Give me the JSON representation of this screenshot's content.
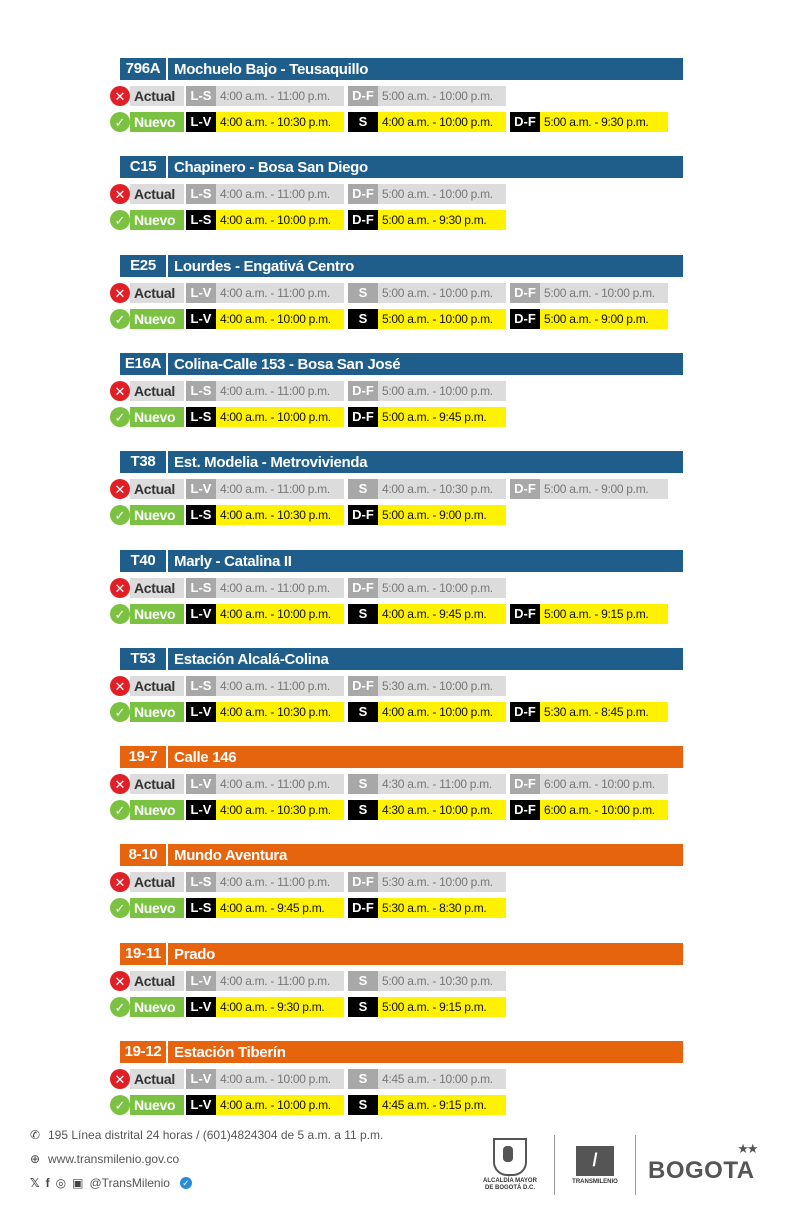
{
  "routes": [
    {
      "code": "796A",
      "name": "Mochuelo Bajo - Teusaquillo",
      "color": "blue",
      "actual": [
        {
          "day": "L-S",
          "time": "4:00 a.m. - 11:00 p.m."
        },
        {
          "day": "D-F",
          "time": "5:00 a.m. - 10:00 p.m."
        }
      ],
      "nuevo": [
        {
          "day": "L-V",
          "time": "4:00 a.m. - 10:30 p.m."
        },
        {
          "day": "S",
          "time": "4:00 a.m. - 10:00 p.m."
        },
        {
          "day": "D-F",
          "time": "5:00 a.m. - 9:30 p.m."
        }
      ]
    },
    {
      "code": "C15",
      "name": "Chapinero - Bosa San Diego",
      "color": "blue",
      "actual": [
        {
          "day": "L-S",
          "time": "4:00 a.m. - 11:00 p.m."
        },
        {
          "day": "D-F",
          "time": "5:00 a.m. - 10:00 p.m."
        }
      ],
      "nuevo": [
        {
          "day": "L-S",
          "time": "4:00 a.m. - 10:00 p.m."
        },
        {
          "day": "D-F",
          "time": "5:00 a.m. - 9:30 p.m."
        }
      ]
    },
    {
      "code": "E25",
      "name": "Lourdes - Engativá Centro",
      "color": "blue",
      "actual": [
        {
          "day": "L-V",
          "time": "4:00 a.m. - 11:00 p.m."
        },
        {
          "day": "S",
          "time": "5:00 a.m. - 10:00 p.m."
        },
        {
          "day": "D-F",
          "time": "5:00 a.m. - 10:00 p.m."
        }
      ],
      "nuevo": [
        {
          "day": "L-V",
          "time": "4:00 a.m. - 10:00 p.m."
        },
        {
          "day": "S",
          "time": "5:00 a.m. - 10:00 p.m."
        },
        {
          "day": "D-F",
          "time": "5:00 a.m. - 9:00 p.m."
        }
      ]
    },
    {
      "code": "E16A",
      "name": "Colina-Calle 153 - Bosa San José",
      "color": "blue",
      "actual": [
        {
          "day": "L-S",
          "time": "4:00 a.m. - 11:00 p.m."
        },
        {
          "day": "D-F",
          "time": "5:00 a.m. - 10:00 p.m."
        }
      ],
      "nuevo": [
        {
          "day": "L-S",
          "time": "4:00 a.m. - 10:00 p.m."
        },
        {
          "day": "D-F",
          "time": "5:00 a.m. - 9:45 p.m."
        }
      ]
    },
    {
      "code": "T38",
      "name": "Est. Modelia - Metrovivienda",
      "color": "blue",
      "actual": [
        {
          "day": "L-V",
          "time": "4:00 a.m. - 11:00 p.m."
        },
        {
          "day": "S",
          "time": "4:00 a.m. - 10:30 p.m."
        },
        {
          "day": "D-F",
          "time": "5:00 a.m. - 9:00 p.m."
        }
      ],
      "nuevo": [
        {
          "day": "L-S",
          "time": "4:00 a.m. - 10:30 p.m."
        },
        {
          "day": "D-F",
          "time": "5:00 a.m. - 9:00 p.m."
        }
      ]
    },
    {
      "code": "T40",
      "name": "Marly - Catalina II",
      "color": "blue",
      "actual": [
        {
          "day": "L-S",
          "time": "4:00 a.m. - 11:00 p.m."
        },
        {
          "day": "D-F",
          "time": "5:00 a.m. - 10:00 p.m."
        }
      ],
      "nuevo": [
        {
          "day": "L-V",
          "time": "4:00 a.m. - 10:00 p.m."
        },
        {
          "day": "S",
          "time": "4:00 a.m. - 9:45 p.m."
        },
        {
          "day": "D-F",
          "time": "5:00 a.m. - 9:15 p.m."
        }
      ]
    },
    {
      "code": "T53",
      "name": "Estación Alcalá-Colina",
      "color": "blue",
      "actual": [
        {
          "day": "L-S",
          "time": "4:00 a.m. - 11:00 p.m."
        },
        {
          "day": "D-F",
          "time": "5:30 a.m. - 10:00 p.m."
        }
      ],
      "nuevo": [
        {
          "day": "L-V",
          "time": "4:00 a.m. - 10:30 p.m."
        },
        {
          "day": "S",
          "time": "4:00 a.m. - 10:00 p.m."
        },
        {
          "day": "D-F",
          "time": "5:30 a.m. - 8:45 p.m."
        }
      ]
    },
    {
      "code": "19-7",
      "name": "Calle 146",
      "color": "orange",
      "actual": [
        {
          "day": "L-V",
          "time": "4:00 a.m. - 11:00 p.m."
        },
        {
          "day": "S",
          "time": "4:30 a.m. - 11:00 p.m."
        },
        {
          "day": "D-F",
          "time": "6:00 a.m. - 10:00 p.m."
        }
      ],
      "nuevo": [
        {
          "day": "L-V",
          "time": "4:00 a.m. - 10:30 p.m."
        },
        {
          "day": "S",
          "time": "4:30 a.m. - 10:00 p.m."
        },
        {
          "day": "D-F",
          "time": "6:00 a.m. - 10:00 p.m."
        }
      ]
    },
    {
      "code": "8-10",
      "name": "Mundo Aventura",
      "color": "orange",
      "actual": [
        {
          "day": "L-S",
          "time": "4:00 a.m. - 11:00 p.m."
        },
        {
          "day": "D-F",
          "time": "5:30 a.m. - 10:00 p.m."
        }
      ],
      "nuevo": [
        {
          "day": "L-S",
          "time": "4:00 a.m. - 9:45 p.m."
        },
        {
          "day": "D-F",
          "time": "5:30 a.m. - 8:30 p.m."
        }
      ]
    },
    {
      "code": "19-11",
      "name": "Prado",
      "color": "orange",
      "actual": [
        {
          "day": "L-V",
          "time": "4:00 a.m. - 11:00 p.m."
        },
        {
          "day": "S",
          "time": "5:00 a.m. - 10:30 p.m."
        }
      ],
      "nuevo": [
        {
          "day": "L-V",
          "time": "4:00 a.m. - 9:30 p.m."
        },
        {
          "day": "S",
          "time": "5:00 a.m. - 9:15 p.m."
        }
      ]
    },
    {
      "code": "19-12",
      "name": "Estación Tiberín",
      "color": "orange",
      "actual": [
        {
          "day": "L-V",
          "time": "4:00 a.m. - 10:00 p.m."
        },
        {
          "day": "S",
          "time": "4:45 a.m. - 10:00 p.m."
        }
      ],
      "nuevo": [
        {
          "day": "L-V",
          "time": "4:00 a.m. - 10:00 p.m."
        },
        {
          "day": "S",
          "time": "4:45 a.m. - 9:15 p.m."
        }
      ]
    }
  ],
  "labels": {
    "actual": "Actual",
    "nuevo": "Nuevo"
  },
  "footer": {
    "phone": "195 Línea distrital 24 horas / (601)4824304 de 5 a.m. a 11 p.m.",
    "website": "www.transmilenio.gov.co",
    "handle": "@TransMilenio",
    "alcaldia_line1": "ALCALDÍA MAYOR",
    "alcaldia_line2": "DE BOGOTÁ D.C.",
    "tm_logo": "TRANSMILENIO",
    "bogota_logo": "BOGOTA"
  },
  "icons": {
    "phone": "phone-icon",
    "web": "globe-icon",
    "x": "x-icon",
    "facebook": "facebook-icon",
    "instagram": "instagram-icon",
    "youtube": "youtube-icon",
    "verified": "verified-icon"
  },
  "colors": {
    "blue": "#1f5e8a",
    "orange": "#e7640f",
    "actual_x": "#e01f26",
    "nuevo_check": "#7cc242",
    "nuevo_time": "#fff200"
  }
}
